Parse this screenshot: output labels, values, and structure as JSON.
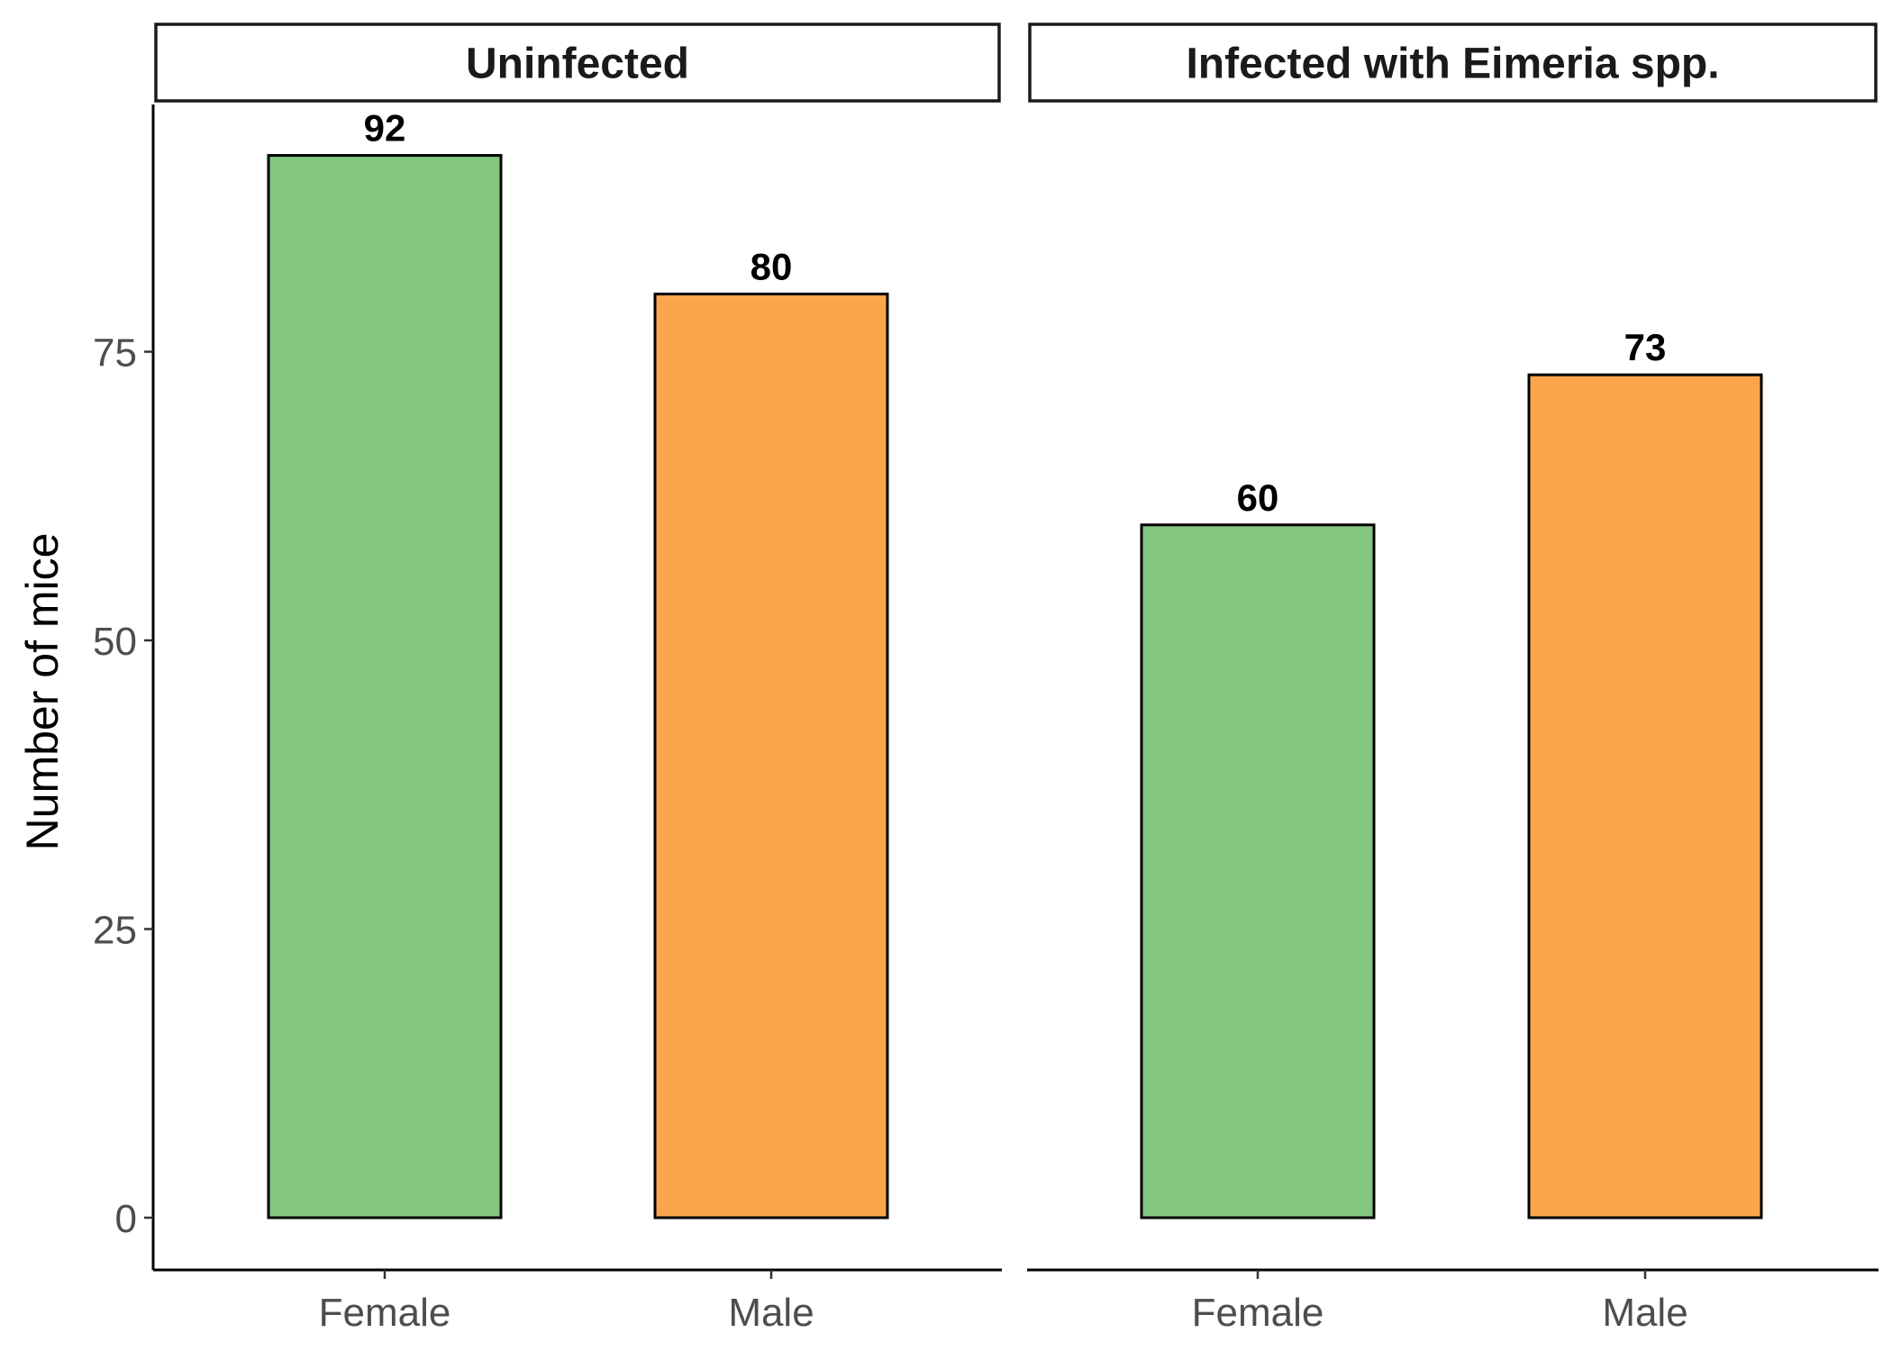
{
  "chart_data": {
    "type": "bar",
    "ylabel": "Number of mice",
    "xlabel": "",
    "ylim": [
      0,
      97
    ],
    "yticks": [
      0,
      25,
      50,
      75
    ],
    "grid": false,
    "legend": "none",
    "categories": [
      "Female",
      "Male"
    ],
    "colors": {
      "Female": "#84c77f",
      "Male": "#fda54c"
    },
    "panels": [
      {
        "title": "Uninfected",
        "values": [
          92,
          80
        ]
      },
      {
        "title": "Infected with Eimeria spp.",
        "values": [
          60,
          73
        ]
      }
    ]
  }
}
